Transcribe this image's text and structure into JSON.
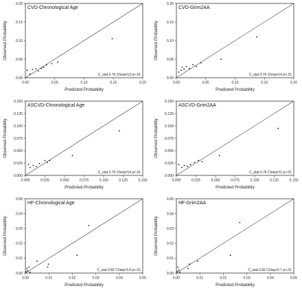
{
  "chart_data": [
    {
      "type": "scatter",
      "title": "CVD-Chronological Age",
      "xlabel": "Predicted Probability",
      "ylabel": "Observed Probability",
      "xlim": [
        0,
        0.2
      ],
      "ylim": [
        0,
        0.2
      ],
      "xticks": [
        "0.00",
        "0.05",
        "0.10",
        "0.15",
        "0.20"
      ],
      "yticks": [
        "0.00",
        "0.05",
        "0.10",
        "0.15",
        "0.20"
      ],
      "tick_values": [
        0,
        0.05,
        0.1,
        0.15,
        0.2
      ],
      "reference_line": "y=x",
      "annotation": "C_stat 0.76 Chisq=13 p<.01",
      "x": [
        0.003,
        0.008,
        0.012,
        0.018,
        0.022,
        0.027,
        0.031,
        0.036,
        0.045,
        0.055,
        0.148
      ],
      "y": [
        0.02,
        0.01,
        0.022,
        0.024,
        0.018,
        0.025,
        0.028,
        0.035,
        0.038,
        0.042,
        0.105
      ]
    },
    {
      "type": "scatter",
      "title": "CVD-Grim2AA",
      "xlabel": "Predicted Probability",
      "ylabel": "Observed Probability",
      "xlim": [
        0,
        0.2
      ],
      "ylim": [
        0,
        0.2
      ],
      "xticks": [
        "0.00",
        "0.05",
        "0.10",
        "0.15",
        "0.20"
      ],
      "yticks": [
        "0.00",
        "0.05",
        "0.10",
        "0.15",
        "0.20"
      ],
      "tick_values": [
        0,
        0.05,
        0.1,
        0.15,
        0.2
      ],
      "reference_line": "y=x",
      "annotation": "C_stat 0.76 Chisq=14 p<.01",
      "x": [
        0.004,
        0.008,
        0.01,
        0.013,
        0.017,
        0.022,
        0.028,
        0.034,
        0.042,
        0.076,
        0.137
      ],
      "y": [
        0.015,
        0.02,
        0.028,
        0.023,
        0.03,
        0.025,
        0.035,
        0.03,
        0.04,
        0.05,
        0.11
      ]
    },
    {
      "type": "scatter",
      "title": "ASCVD-Chronological Age",
      "xlabel": "Predicted Probability",
      "ylabel": "Observed Probability",
      "xlim": [
        0,
        0.15
      ],
      "ylim": [
        0,
        0.15
      ],
      "xticks": [
        "0.000",
        "0.025",
        "0.050",
        "0.075",
        "0.100",
        "0.125",
        "0.150"
      ],
      "yticks": [
        "0.000",
        "0.025",
        "0.050",
        "0.075",
        "0.100",
        "0.125",
        "0.150"
      ],
      "tick_values": [
        0,
        0.025,
        0.05,
        0.075,
        0.1,
        0.125,
        0.15
      ],
      "reference_line": "y=x",
      "annotation": "C_stat 0.76 Chisq=14 p<.01",
      "x": [
        0.004,
        0.006,
        0.01,
        0.014,
        0.018,
        0.025,
        0.028,
        0.031,
        0.06,
        0.12
      ],
      "y": [
        0.022,
        0.016,
        0.02,
        0.018,
        0.024,
        0.03,
        0.026,
        0.03,
        0.04,
        0.09
      ]
    },
    {
      "type": "scatter",
      "title": "ASCVD-Grim2AA",
      "xlabel": "Predicted Probability",
      "ylabel": "Observed Probability",
      "xlim": [
        0,
        0.15
      ],
      "ylim": [
        0,
        0.15
      ],
      "xticks": [
        "0.000",
        "0.025",
        "0.050",
        "0.075",
        "0.100",
        "0.125",
        "0.150"
      ],
      "yticks": [
        "0.000",
        "0.025",
        "0.050",
        "0.075",
        "0.100",
        "0.125",
        "0.150"
      ],
      "tick_values": [
        0,
        0.025,
        0.05,
        0.075,
        0.1,
        0.125,
        0.15
      ],
      "reference_line": "y=x",
      "annotation": "C_stat 0.76 Chisq=11 p<.01",
      "x": [
        0.003,
        0.007,
        0.01,
        0.014,
        0.018,
        0.023,
        0.028,
        0.033,
        0.055,
        0.13
      ],
      "y": [
        0.022,
        0.016,
        0.02,
        0.018,
        0.022,
        0.026,
        0.03,
        0.028,
        0.04,
        0.095
      ]
    },
    {
      "type": "scatter",
      "title": "HF-Chronological Age",
      "xlabel": "Predicted Probability",
      "ylabel": "Observed Probability",
      "xlim": [
        0,
        0.05
      ],
      "ylim": [
        0,
        0.05
      ],
      "xticks": [
        "0.00",
        "0.01",
        "0.02",
        "0.03",
        "0.04",
        "0.05"
      ],
      "yticks": [
        "0.00",
        "0.01",
        "0.02",
        "0.03",
        "0.04",
        "0.05"
      ],
      "tick_values": [
        0,
        0.01,
        0.02,
        0.03,
        0.04,
        0.05
      ],
      "reference_line": "y=x",
      "annotation": "C_stat 0.82 Chisq=3.9 p<.01",
      "x": [
        0.0003,
        0.0006,
        0.001,
        0.0015,
        0.002,
        0.005,
        0.0095,
        0.0098,
        0.022,
        0.027
      ],
      "y": [
        0.001,
        0.003,
        0.0015,
        0.004,
        0.0005,
        0.008,
        0.004,
        0.006,
        0.012,
        0.032
      ]
    },
    {
      "type": "scatter",
      "title": "HF-Grim2AA",
      "xlabel": "Predicted Probability",
      "ylabel": "Observed Probability",
      "xlim": [
        0,
        0.05
      ],
      "ylim": [
        0,
        0.05
      ],
      "xticks": [
        "0.00",
        "0.01",
        "0.02",
        "0.03",
        "0.04",
        "0.05"
      ],
      "yticks": [
        "0.00",
        "0.01",
        "0.02",
        "0.03",
        "0.04",
        "0.05"
      ],
      "tick_values": [
        0,
        0.01,
        0.02,
        0.03,
        0.04,
        0.05
      ],
      "reference_line": "y=x",
      "annotation": "C_stat 0.82 Chisq=2.7 p<.01",
      "x": [
        0.0003,
        0.0006,
        0.001,
        0.0015,
        0.005,
        0.0055,
        0.009,
        0.023,
        0.027
      ],
      "y": [
        0.001,
        0.004,
        0.002,
        0.0005,
        0.003,
        0.006,
        0.008,
        0.012,
        0.034
      ]
    }
  ]
}
